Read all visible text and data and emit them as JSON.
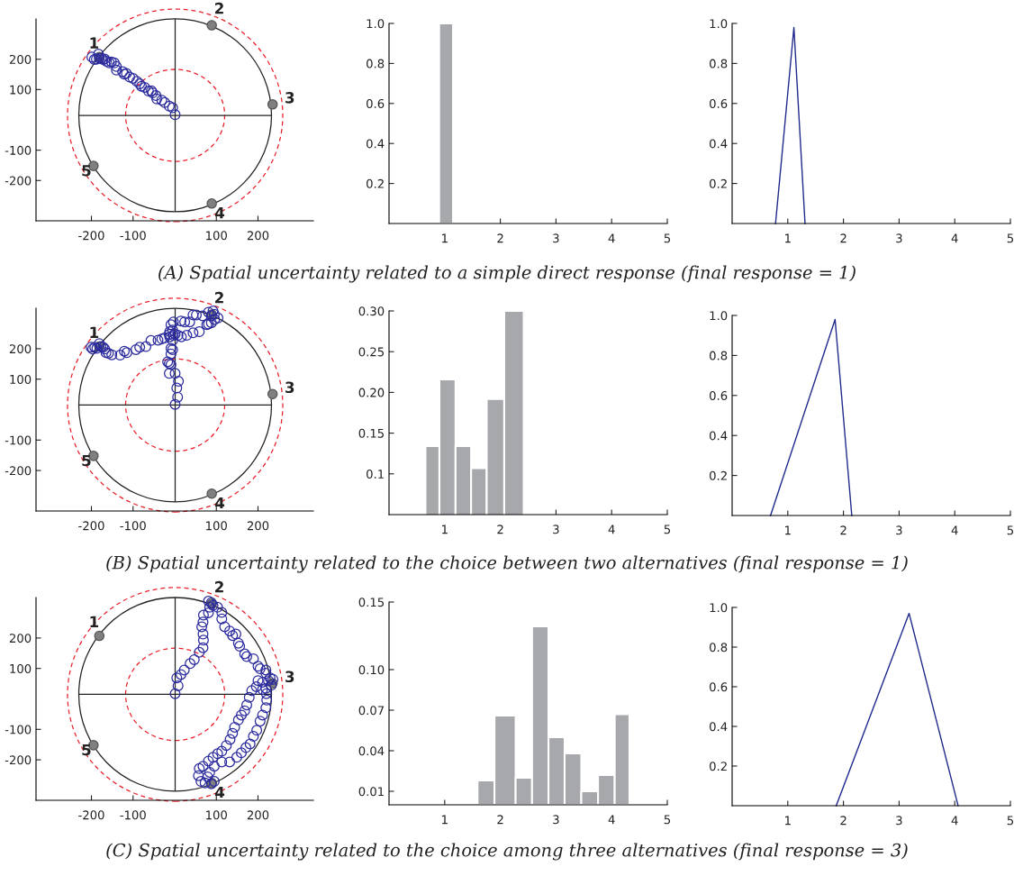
{
  "chart_data": [
    {
      "type": "scatter",
      "xlim": [
        -333,
        333
      ],
      "ylim": [
        -333,
        333
      ],
      "xticks": [
        -200,
        -100,
        100,
        200
      ],
      "yticks": [
        -200,
        -100,
        100,
        200
      ],
      "marker": "circle",
      "annotations": [
        "(A) Spatial uncertainty related to a simple direct response (final response = 1)",
        {
          "text": "1",
          "x": -181,
          "y": 207
        },
        {
          "text": "2",
          "x": 89,
          "y": 312
        },
        {
          "text": "3",
          "x": 235,
          "y": 51
        },
        {
          "text": "4",
          "x": 89,
          "y": -276
        },
        {
          "text": "5",
          "x": -195,
          "y": -152
        }
      ],
      "series": [
        {
          "color": "#808080",
          "x": [
            -181,
            89,
            235,
            89,
            -195
          ],
          "values": [
            207,
            312,
            51,
            -276,
            -152
          ]
        },
        {
          "color": "#2b2b9e",
          "x": [
            -199,
            -193,
            -188,
            -183,
            -181,
            -176,
            -172,
            -168,
            -164,
            -157,
            -152,
            -145,
            -140,
            -140,
            -125,
            -121,
            -116,
            -108,
            -100,
            -91,
            -84,
            -80,
            -72,
            -63,
            -56,
            -53,
            -45,
            -43,
            -31,
            -24,
            -13,
            -5,
            1
          ],
          "values": [
            207,
            199,
            200,
            217,
            203,
            203,
            199,
            201,
            193,
            188,
            191,
            188,
            176,
            164,
            159,
            151,
            153,
            141,
            137,
            127,
            119,
            111,
            107,
            95,
            96,
            89,
            80,
            69,
            65,
            57,
            45,
            40,
            17
          ]
        }
      ]
    },
    {
      "type": "histogram",
      "bins": [
        0.9,
        1.15
      ],
      "values": [
        1.0
      ],
      "color": "#a7a8ab",
      "xlim": [
        0,
        5
      ],
      "xticks": [
        1,
        2,
        3,
        4,
        5
      ],
      "ylim": [
        0,
        1.0
      ],
      "yticks": [
        0.2,
        0.4,
        0.6,
        0.8,
        {
          "value": 1.0,
          "label": "1.0"
        }
      ]
    },
    {
      "type": "line",
      "x": [
        0.78,
        1.11,
        1.31
      ],
      "values": [
        0,
        0.98,
        0
      ],
      "color": "#1f2a8c",
      "xlim": [
        0,
        5
      ],
      "xticks": [
        1,
        2,
        3,
        4,
        5
      ],
      "ylim": [
        0,
        1.0
      ],
      "yticks": [
        0.2,
        0.4,
        0.6,
        0.8,
        {
          "value": 1.0,
          "label": "1.0"
        }
      ]
    },
    {
      "type": "scatter",
      "xlim": [
        -333,
        333
      ],
      "ylim": [
        -333,
        333
      ],
      "xticks": [
        -200,
        -100,
        100,
        200
      ],
      "yticks": [
        -200,
        -100,
        100,
        200
      ],
      "marker": "circle",
      "annotations": [
        "(B) Spatial uncertainty related to the choice between two alternatives (final response = 1)",
        {
          "text": "1",
          "x": -181,
          "y": 207
        },
        {
          "text": "2",
          "x": 89,
          "y": 312
        },
        {
          "text": "3",
          "x": 235,
          "y": 51
        },
        {
          "text": "4",
          "x": 89,
          "y": -276
        },
        {
          "text": "5",
          "x": -195,
          "y": -152
        }
      ],
      "series": [
        {
          "color": "#808080",
          "x": [
            -181,
            89,
            235,
            89,
            -195
          ],
          "values": [
            207,
            312,
            51,
            -276,
            -152
          ]
        },
        {
          "color": "#2b2b9e",
          "x": [
            -201,
            -197,
            -192,
            -187,
            -181,
            -177,
            -172,
            -168,
            -165,
            -159,
            -151,
            -131,
            -121,
            -115,
            -93,
            -84,
            -69,
            -57,
            -40,
            -31,
            -24,
            -12,
            -3,
            8,
            16,
            29,
            44,
            59,
            77,
            81,
            88,
            96,
            104,
            88,
            95,
            81,
            92,
            67,
            52,
            44,
            36,
            24,
            15,
            -3,
            -9,
            -12,
            -5,
            1,
            -13,
            -5,
            -9,
            -5,
            -9,
            -17,
            -13,
            -9,
            -13,
            1,
            9,
            5,
            7,
            1
          ],
          "values": [
            205,
            199,
            205,
            201,
            217,
            207,
            205,
            199,
            187,
            185,
            180,
            179,
            192,
            187,
            197,
            205,
            207,
            227,
            228,
            232,
            235,
            239,
            244,
            244,
            239,
            244,
            252,
            256,
            279,
            281,
            285,
            296,
            301,
            308,
            313,
            320,
            324,
            308,
            311,
            311,
            288,
            288,
            291,
            288,
            279,
            256,
            261,
            248,
            247,
            227,
            201,
            197,
            183,
            157,
            152,
            148,
            119,
            119,
            93,
            71,
            41,
            17
          ]
        }
      ]
    },
    {
      "type": "histogram",
      "bins": [
        0.655,
        0.905,
        1.195,
        1.475,
        1.755,
        2.07,
        2.42
      ],
      "values": [
        0.134,
        0.216,
        0.134,
        0.107,
        0.192,
        0.3
      ],
      "color": "#a7a8ab",
      "xlim": [
        0,
        5
      ],
      "xticks": [
        1,
        2,
        3,
        4,
        5
      ],
      "ylim": [
        0.05,
        0.3
      ],
      "yticks": [
        0.1,
        0.15,
        {
          "value": 0.2,
          "label": "0.20"
        },
        0.25,
        {
          "value": 0.3,
          "label": "0.30"
        }
      ]
    },
    {
      "type": "line",
      "x": [
        0.69,
        1.85,
        2.15
      ],
      "values": [
        0,
        0.98,
        0
      ],
      "color": "#1f2a8c",
      "xlim": [
        0,
        5
      ],
      "xticks": [
        1,
        2,
        3,
        4,
        5
      ],
      "ylim": [
        0,
        1.0
      ],
      "yticks": [
        0.2,
        0.4,
        0.6,
        0.8,
        {
          "value": 1.0,
          "label": "1.0"
        }
      ]
    },
    {
      "type": "scatter",
      "xlim": [
        -333,
        333
      ],
      "ylim": [
        -333,
        333
      ],
      "xticks": [
        -200,
        -100,
        100,
        200
      ],
      "yticks": [
        -200,
        -100,
        100,
        200
      ],
      "marker": "circle",
      "annotations": [
        "(C) Spatial uncertainty related to the choice among three alternatives (final response = 3)",
        {
          "text": "1",
          "x": -181,
          "y": 207
        },
        {
          "text": "2",
          "x": 89,
          "y": 312
        },
        {
          "text": "3",
          "x": 235,
          "y": 51
        },
        {
          "text": "4",
          "x": 89,
          "y": -276
        },
        {
          "text": "5",
          "x": -195,
          "y": -152
        }
      ],
      "series": [
        {
          "color": "#808080",
          "x": [
            -181,
            89,
            235,
            89,
            -195
          ],
          "values": [
            207,
            312,
            51,
            -276,
            -152
          ]
        },
        {
          "color": "#2b2b9e",
          "x": [
            1,
            8,
            5,
            15,
            23,
            37,
            47,
            59,
            68,
            69,
            68,
            65,
            68,
            69,
            81,
            84,
            81,
            88,
            92,
            103,
            113,
            113,
            120,
            132,
            139,
            147,
            153,
            156,
            168,
            173,
            189,
            200,
            205,
            219,
            219,
            229,
            236,
            225,
            211,
            200,
            232,
            219,
            196,
            185,
            179,
            173,
            168,
            160,
            153,
            144,
            139,
            133,
            124,
            113,
            103,
            92,
            81,
            68,
            59,
            57,
            63,
            73,
            88,
            95,
            79,
            84,
            95,
            113,
            132,
            149,
            160,
            171,
            181,
            189,
            197,
            205,
            211,
            219,
            221,
            220,
            211
          ],
          "values": [
            17,
            43,
            69,
            80,
            95,
            116,
            129,
            153,
            168,
            193,
            213,
            237,
            252,
            275,
            283,
            301,
            321,
            316,
            307,
            301,
            284,
            263,
            237,
            223,
            208,
            213,
            183,
            173,
            148,
            139,
            132,
            107,
            99,
            95,
            84,
            69,
            64,
            60,
            55,
            60,
            45,
            35,
            40,
            27,
            5,
            -20,
            -39,
            -53,
            -69,
            -93,
            -113,
            -133,
            -153,
            -172,
            -180,
            -192,
            -204,
            -221,
            -229,
            -252,
            -271,
            -276,
            -279,
            -271,
            -256,
            -241,
            -221,
            -207,
            -207,
            -192,
            -177,
            -160,
            -148,
            -123,
            -103,
            -73,
            -53,
            -29,
            -4,
            17,
            31
          ]
        }
      ]
    },
    {
      "type": "histogram",
      "bins": [
        1.59,
        1.895,
        2.275,
        2.57,
        2.865,
        3.155,
        3.455,
        3.755,
        4.055,
        4.32
      ],
      "values": [
        0.018,
        0.066,
        0.02,
        0.132,
        0.05,
        0.038,
        0.01,
        0.022,
        0.067
      ],
      "color": "#a7a8ab",
      "xlim": [
        0,
        5
      ],
      "xticks": [
        1,
        2,
        3,
        4,
        5
      ],
      "ylim": [
        0,
        0.15
      ],
      "yticks": [
        0.01,
        0.04,
        0.07,
        {
          "value": 0.1,
          "label": "0.10"
        },
        0.15
      ]
    },
    {
      "type": "line",
      "x": [
        1.87,
        3.18,
        4.06
      ],
      "values": [
        0,
        0.97,
        0
      ],
      "color": "#1f2a8c",
      "xlim": [
        0,
        5
      ],
      "xticks": [
        1,
        2,
        3,
        4,
        5
      ],
      "ylim": [
        0,
        1.0
      ],
      "yticks": [
        0.2,
        0.4,
        0.6,
        0.8,
        {
          "value": 1.0,
          "label": "1.0"
        }
      ]
    }
  ]
}
